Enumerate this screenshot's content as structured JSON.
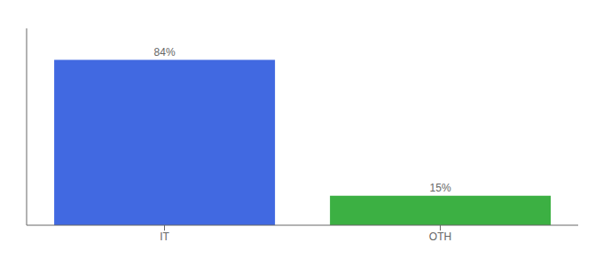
{
  "chart_data": {
    "type": "bar",
    "categories": [
      "IT",
      "OTH"
    ],
    "values": [
      84,
      15
    ],
    "value_labels": [
      "84%",
      "15%"
    ],
    "colors": [
      "#4169E1",
      "#3CB043"
    ],
    "ylim": [
      0,
      100
    ],
    "yticks": [],
    "tick_labels": "x",
    "data_labels": true,
    "grid": false
  }
}
